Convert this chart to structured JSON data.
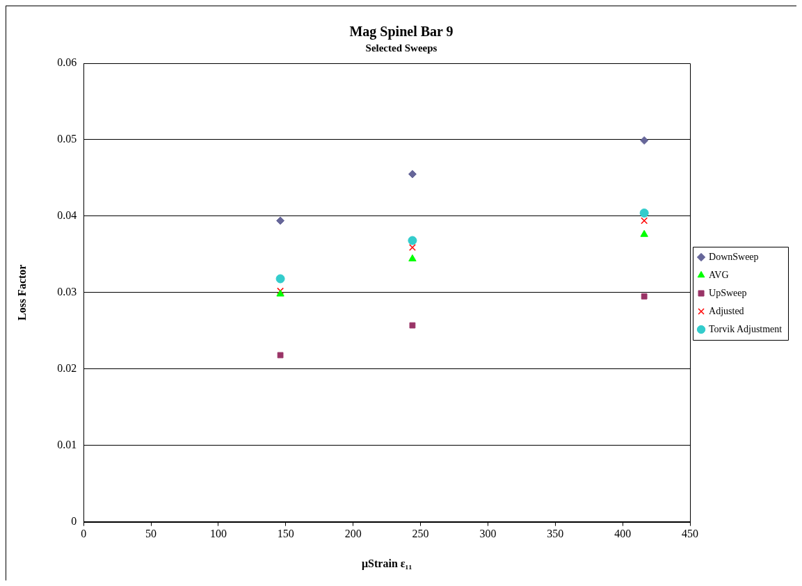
{
  "chart_data": {
    "type": "scatter",
    "title": "Mag Spinel Bar 9",
    "subtitle": "Selected Sweeps",
    "xlabel": "μStrain ε₁₁",
    "ylabel": "Loss Factor",
    "xlim": [
      0,
      450
    ],
    "xticks": [
      0,
      50,
      100,
      150,
      200,
      250,
      300,
      350,
      400,
      450
    ],
    "ylim": [
      0,
      0.06
    ],
    "yticks": [
      0,
      0.01,
      0.02,
      0.03,
      0.04,
      0.05,
      0.06
    ],
    "grid": "y",
    "legend": "right",
    "x": [
      146,
      244,
      416
    ],
    "series": [
      {
        "name": "DownSweep",
        "color": "#666699",
        "marker": "diamond",
        "values": [
          0.0394,
          0.0455,
          0.0499
        ]
      },
      {
        "name": "AVG",
        "color": "#00ff00",
        "marker": "triangle",
        "values": [
          0.0298,
          0.0344,
          0.0376
        ]
      },
      {
        "name": "UpSweep",
        "color": "#993366",
        "marker": "square",
        "values": [
          0.0218,
          0.0257,
          0.0295
        ]
      },
      {
        "name": "Adjusted",
        "color": "#ff0000",
        "marker": "cross",
        "values": [
          0.0302,
          0.0359,
          0.0394
        ]
      },
      {
        "name": "Torvik Adjustment",
        "color": "#33cccc",
        "marker": "circle",
        "values": [
          0.0318,
          0.0368,
          0.0404
        ]
      }
    ]
  }
}
